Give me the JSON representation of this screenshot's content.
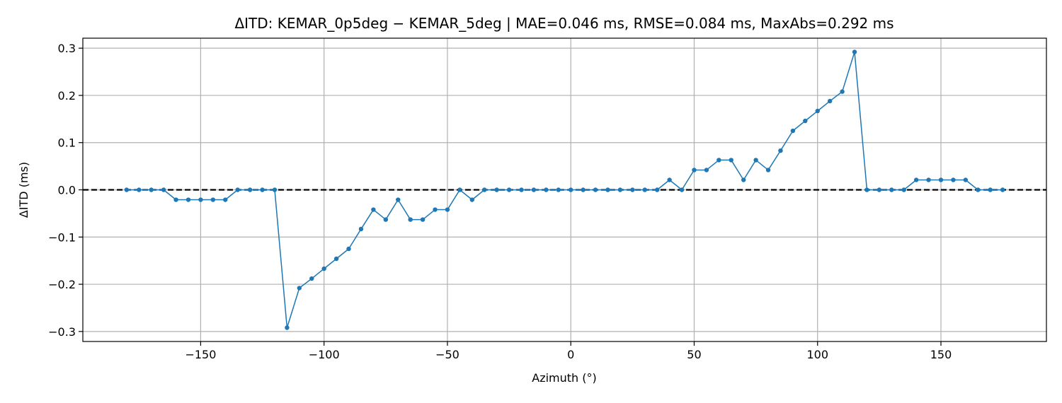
{
  "chart_data": {
    "type": "line",
    "title": "ΔITD: KEMAR_0p5deg − KEMAR_5deg  |  MAE=0.046 ms, RMSE=0.084 ms, MaxAbs=0.292 ms",
    "xlabel": "Azimuth (°)",
    "ylabel": "ΔITD (ms)",
    "xlim": [
      -197.75,
      192.75
    ],
    "ylim": [
      -0.3212,
      0.3212
    ],
    "xticks": [
      -150,
      -100,
      -50,
      0,
      50,
      100,
      150
    ],
    "xtick_labels": [
      "−150",
      "−100",
      "−50",
      "0",
      "50",
      "100",
      "150"
    ],
    "yticks": [
      -0.3,
      -0.2,
      -0.1,
      0.0,
      0.1,
      0.2,
      0.3
    ],
    "ytick_labels": [
      "−0.3",
      "−0.2",
      "−0.1",
      "0.0",
      "0.1",
      "0.2",
      "0.3"
    ],
    "grid": true,
    "reference_line": {
      "y": 0,
      "style": "dashed",
      "color": "#000000"
    },
    "series": [
      {
        "color": "#1f77b4",
        "marker": "circle",
        "x": [
          -180,
          -175,
          -170,
          -165,
          -160,
          -155,
          -150,
          -145,
          -140,
          -135,
          -130,
          -125,
          -120,
          -115,
          -110,
          -105,
          -100,
          -95,
          -90,
          -85,
          -80,
          -75,
          -70,
          -65,
          -60,
          -55,
          -50,
          -45,
          -40,
          -35,
          -30,
          -25,
          -20,
          -15,
          -10,
          -5,
          0,
          5,
          10,
          15,
          20,
          25,
          30,
          35,
          40,
          45,
          50,
          55,
          60,
          65,
          70,
          75,
          80,
          85,
          90,
          95,
          100,
          105,
          110,
          115,
          120,
          125,
          130,
          135,
          140,
          145,
          150,
          155,
          160,
          165,
          170,
          175
        ],
        "y": [
          0,
          0,
          0,
          0,
          -0.021,
          -0.021,
          -0.021,
          -0.021,
          -0.021,
          0,
          0,
          0,
          0,
          -0.292,
          -0.208,
          -0.188,
          -0.167,
          -0.146,
          -0.125,
          -0.083,
          -0.042,
          -0.063,
          -0.021,
          -0.063,
          -0.063,
          -0.042,
          -0.042,
          0,
          -0.021,
          0,
          0,
          0,
          0,
          0,
          0,
          0,
          0,
          0,
          0,
          0,
          0,
          0,
          0,
          0,
          0.021,
          0,
          0.042,
          0.042,
          0.063,
          0.063,
          0.021,
          0.063,
          0.042,
          0.083,
          0.125,
          0.146,
          0.167,
          0.188,
          0.208,
          0.292,
          0,
          0,
          0,
          0,
          0.021,
          0.021,
          0.021,
          0.021,
          0.021,
          0,
          0,
          0
        ]
      }
    ]
  }
}
